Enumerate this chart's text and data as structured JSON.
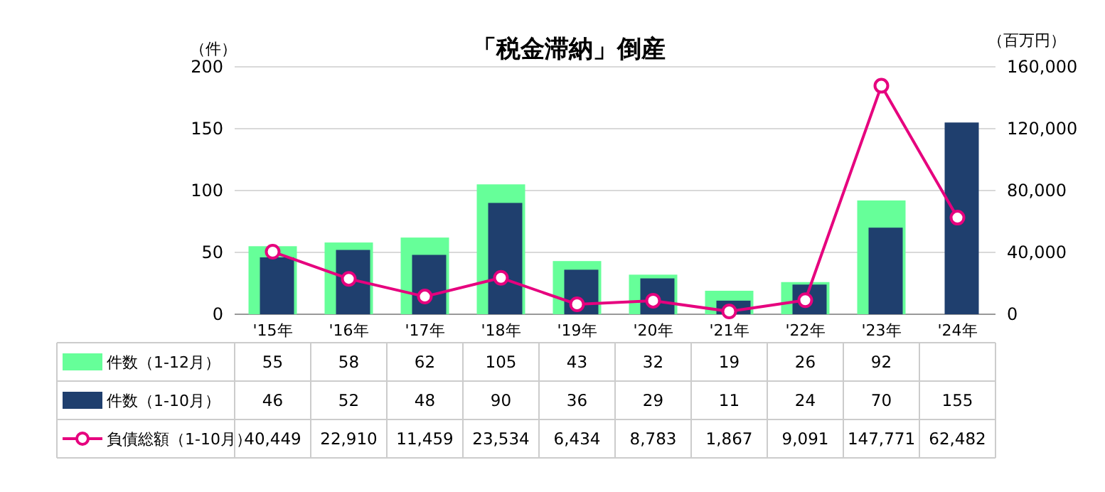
{
  "chart_data": {
    "type": "bar",
    "title": "「税金滞納」倒産",
    "ylabel": "（件）",
    "y2label": "（百万円）",
    "categories": [
      "'15年",
      "'16年",
      "'17年",
      "'18年",
      "'19年",
      "'20年",
      "'21年",
      "'22年",
      "'23年",
      "'24年"
    ],
    "series": [
      {
        "name": "件数（1-12月）",
        "color": "#66ff99",
        "values": [
          55,
          58,
          62,
          105,
          43,
          32,
          19,
          26,
          92,
          null
        ],
        "value_labels": [
          "55",
          "58",
          "62",
          "105",
          "43",
          "32",
          "19",
          "26",
          "92",
          null
        ]
      },
      {
        "name": "件数（1-10月）",
        "color": "#1f3f6e",
        "values": [
          46,
          52,
          48,
          90,
          36,
          29,
          11,
          24,
          70,
          155
        ],
        "value_labels": [
          "46",
          "52",
          "48",
          "90",
          "36",
          "29",
          "11",
          "24",
          "70",
          "155"
        ]
      },
      {
        "name": "負債総額（1-10月）",
        "type": "line",
        "axis": "y2",
        "color": "#e6007e",
        "marker": "circle",
        "values": [
          40449,
          22910,
          11459,
          23534,
          6434,
          8783,
          1867,
          9091,
          147771,
          62482
        ],
        "value_labels": [
          "40,449",
          "22,910",
          "11,459",
          "23,534",
          "6,434",
          "8,783",
          "1,867",
          "9,091",
          "147,771",
          "62,482"
        ]
      }
    ],
    "ylim": [
      0,
      200
    ],
    "yticks": [
      0,
      50,
      100,
      150,
      200
    ],
    "y2lim": [
      0,
      160000
    ],
    "y2ticks": [
      {
        "value": 0,
        "label": "0"
      },
      {
        "value": 40000,
        "label": "40,000"
      },
      {
        "value": 80000,
        "label": "80,000"
      },
      {
        "value": 120000,
        "label": "120,000"
      },
      {
        "value": 160000,
        "label": "160,000"
      }
    ],
    "grid": "y",
    "legend": "bottom"
  }
}
